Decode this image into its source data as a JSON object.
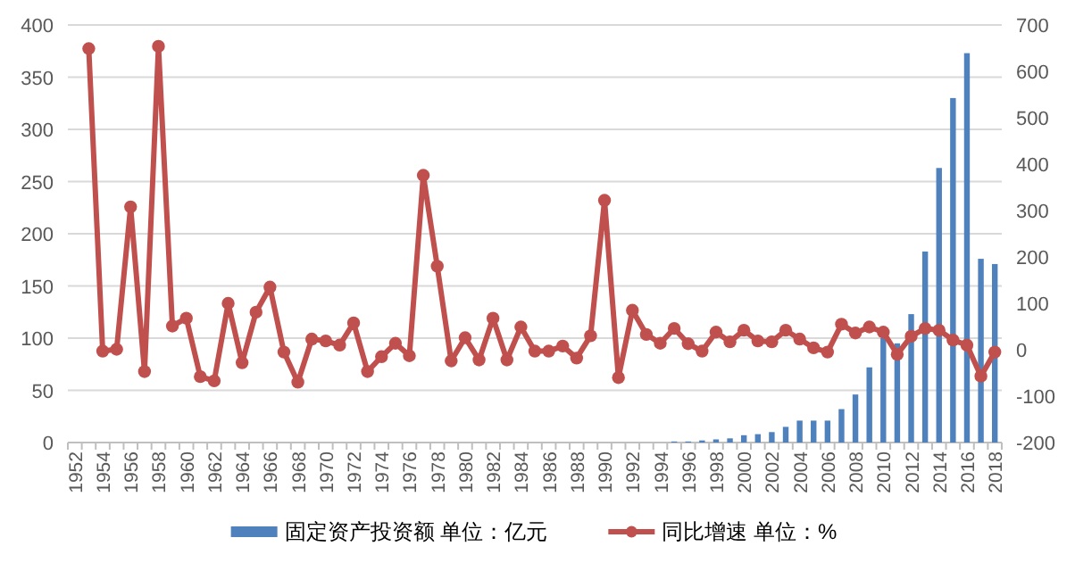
{
  "chart_data": {
    "type": "bar",
    "categories": [
      "1952",
      null,
      "1954",
      null,
      "1956",
      null,
      "1958",
      null,
      "1960",
      null,
      "1962",
      null,
      "1964",
      null,
      "1966",
      null,
      "1968",
      null,
      "1970",
      null,
      "1972",
      null,
      "1974",
      null,
      "1976",
      null,
      "1978",
      null,
      "1980",
      null,
      "1982",
      null,
      "1984",
      null,
      "1986",
      null,
      "1988",
      null,
      "1990",
      null,
      "1992",
      null,
      "1994",
      null,
      "1996",
      null,
      "1998",
      null,
      "2000",
      null,
      "2002",
      null,
      "2004",
      null,
      "2006",
      null,
      "2008",
      null,
      "2010",
      null,
      "2012",
      null,
      "2014",
      null,
      "2016",
      null,
      "2018"
    ],
    "series": [
      {
        "name": "固定资产投资额 单位：亿元",
        "color": "#4f81bd",
        "values": [
          null,
          null,
          null,
          null,
          null,
          null,
          null,
          null,
          null,
          null,
          null,
          null,
          null,
          null,
          null,
          null,
          null,
          null,
          null,
          null,
          null,
          null,
          null,
          null,
          null,
          null,
          null,
          null,
          null,
          null,
          null,
          null,
          null,
          null,
          null,
          null,
          null,
          null,
          null,
          null,
          null,
          null,
          null,
          1,
          1,
          2,
          3,
          4,
          7,
          8,
          10,
          15,
          21,
          21,
          21,
          32,
          46,
          72,
          100,
          95,
          123,
          183,
          263,
          330,
          373,
          176,
          171
        ]
      },
      {
        "name": "同比增速 单位：%",
        "type": "line",
        "axis": "y2",
        "color": "#c0504d",
        "marker": "circle",
        "values": [
          null,
          649,
          -3,
          1,
          308,
          -47,
          654,
          51,
          68,
          -58,
          -67,
          100,
          -28,
          81,
          135,
          -5,
          -70,
          23,
          19,
          10,
          58,
          -47,
          -15,
          14,
          -13,
          376,
          180,
          -24,
          26,
          -22,
          68,
          -22,
          49,
          -3,
          -3,
          8,
          -18,
          30,
          322,
          -60,
          85,
          33,
          14,
          46,
          13,
          -3,
          38,
          17,
          42,
          19,
          17,
          42,
          23,
          4,
          -5,
          55,
          36,
          49,
          38,
          -10,
          29,
          46,
          42,
          21,
          10,
          -57,
          -5
        ]
      }
    ],
    "ylim": [
      0,
      400
    ],
    "yticks": [
      0,
      50,
      100,
      150,
      200,
      250,
      300,
      350,
      400
    ],
    "y2lim": [
      -200,
      700
    ],
    "y2ticks": [
      -200,
      -100,
      0,
      100,
      200,
      300,
      400,
      500,
      600,
      700
    ],
    "grid": "y",
    "legend": "bottom"
  }
}
